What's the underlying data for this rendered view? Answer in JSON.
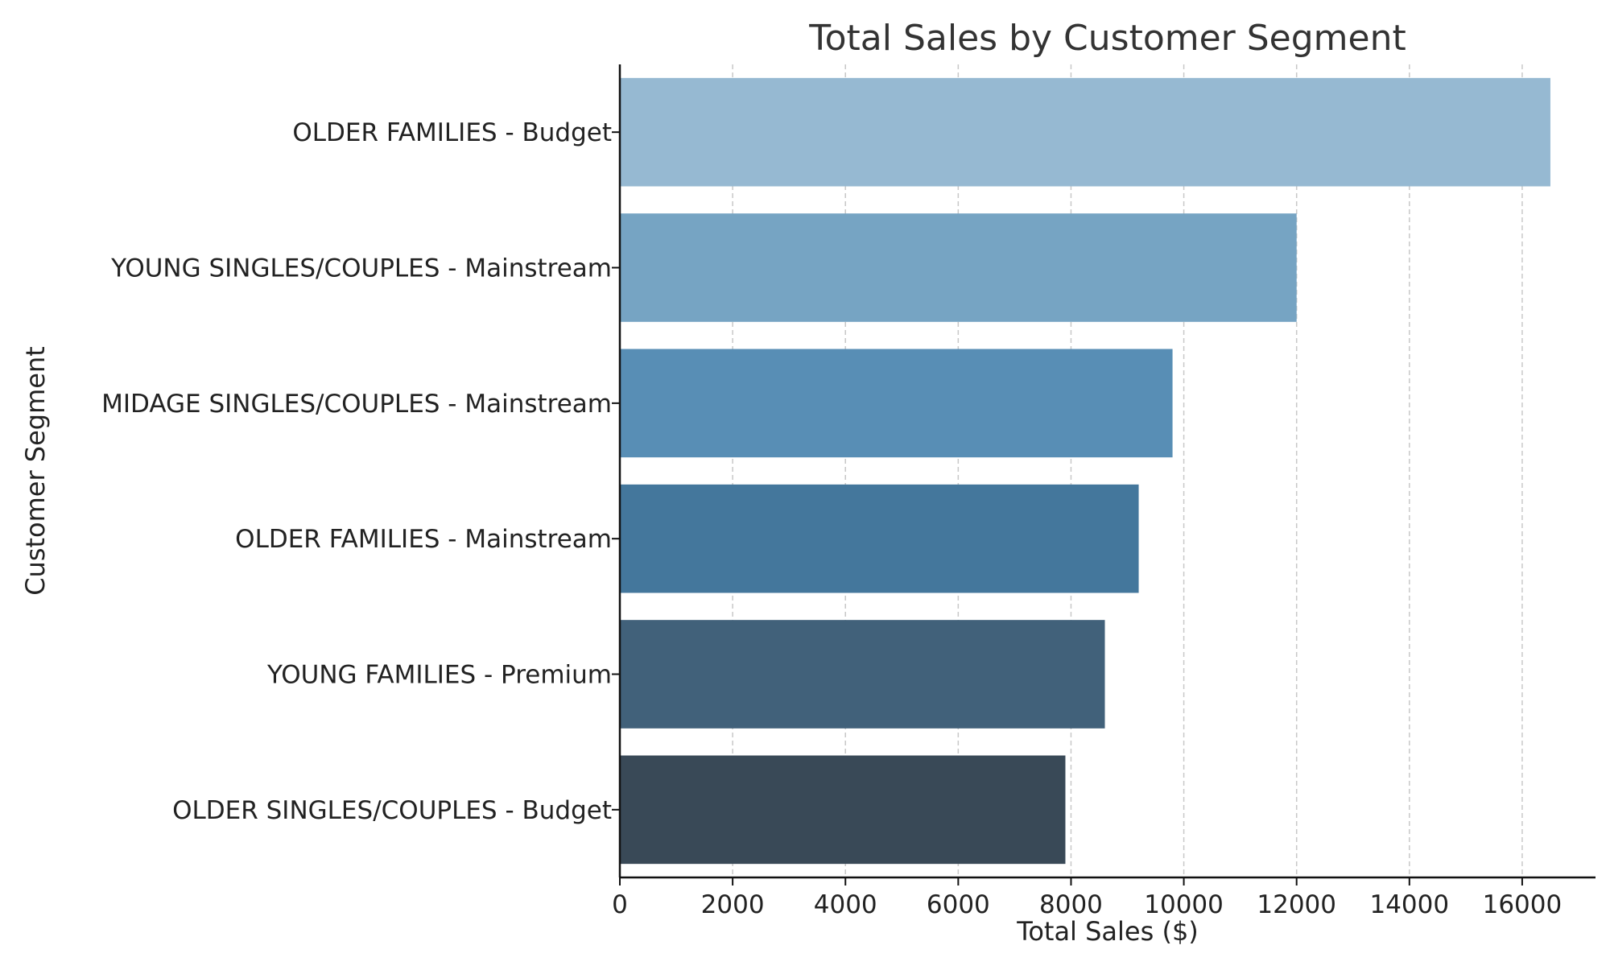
{
  "chart_data": {
    "type": "bar",
    "orientation": "horizontal",
    "title": "Total Sales by Customer Segment",
    "xlabel": "Total Sales ($)",
    "ylabel": "Customer Segment",
    "categories": [
      "OLDER FAMILIES - Budget",
      "YOUNG SINGLES/COUPLES - Mainstream",
      "MIDAGE SINGLES/COUPLES - Mainstream",
      "OLDER FAMILIES - Mainstream",
      "YOUNG FAMILIES - Premium",
      "OLDER SINGLES/COUPLES - Budget"
    ],
    "values": [
      16500,
      12000,
      9800,
      9200,
      8600,
      7900
    ],
    "colors": [
      "#96b9d2",
      "#76a4c3",
      "#588eb5",
      "#44779c",
      "#41617a",
      "#394957"
    ],
    "xlim": [
      0,
      17300
    ],
    "xticks": [
      0,
      2000,
      4000,
      6000,
      8000,
      10000,
      12000,
      14000,
      16000
    ],
    "xtick_labels": [
      "0",
      "2000",
      "4000",
      "6000",
      "8000",
      "10000",
      "12000",
      "14000",
      "16000"
    ],
    "grid": "x-dashed",
    "legend": "none"
  }
}
